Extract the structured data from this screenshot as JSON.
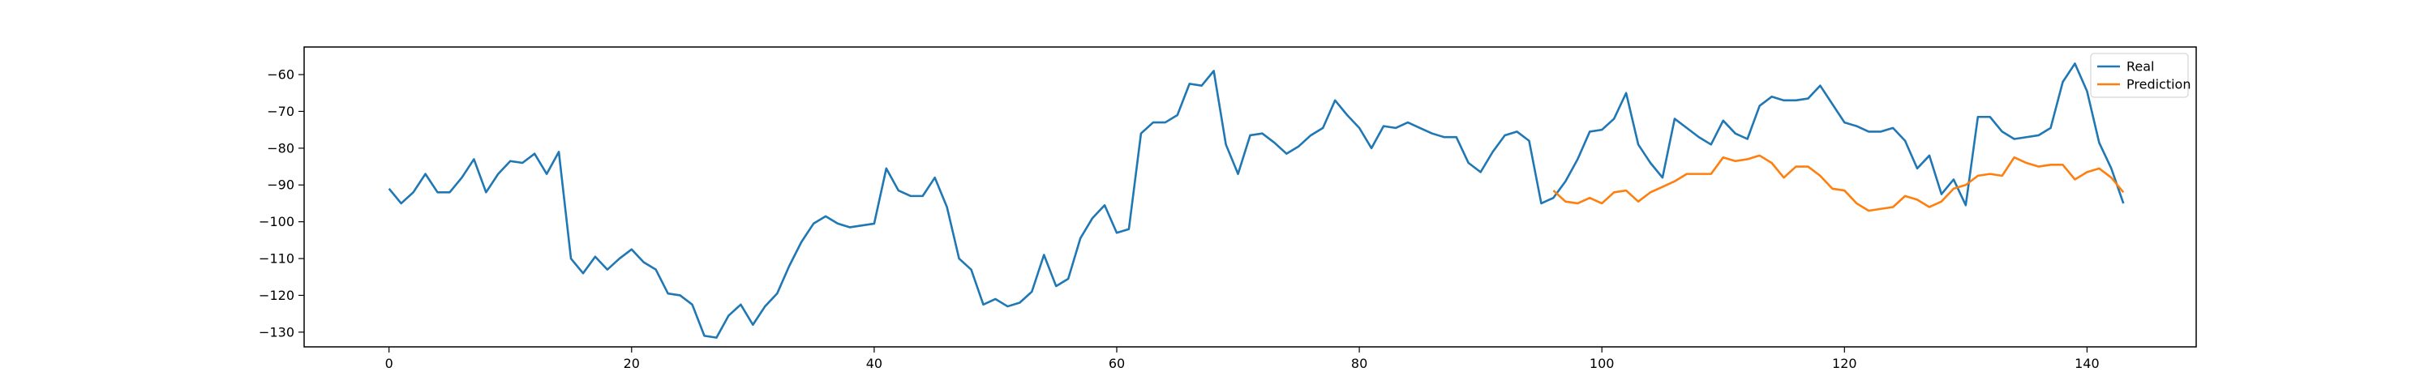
{
  "chart_data": {
    "type": "line",
    "title": "",
    "xlabel": "",
    "ylabel": "",
    "xlim": [
      -7,
      149
    ],
    "ylim": [
      -134,
      -52.5
    ],
    "xticks": [
      0,
      20,
      40,
      60,
      80,
      100,
      120,
      140
    ],
    "yticks": [
      -60,
      -70,
      -80,
      -90,
      -100,
      -110,
      -120,
      -130
    ],
    "grid": false,
    "legend": {
      "position": "top-right",
      "entries": [
        "Real",
        "Prediction"
      ]
    },
    "series": [
      {
        "name": "Real",
        "color": "#1f77b4",
        "x": [
          0,
          1,
          2,
          3,
          4,
          5,
          6,
          7,
          8,
          9,
          10,
          11,
          12,
          13,
          14,
          15,
          16,
          17,
          18,
          19,
          20,
          21,
          22,
          23,
          24,
          25,
          26,
          27,
          28,
          29,
          30,
          31,
          32,
          33,
          34,
          35,
          36,
          37,
          38,
          39,
          40,
          41,
          42,
          43,
          44,
          45,
          46,
          47,
          48,
          49,
          50,
          51,
          52,
          53,
          54,
          55,
          56,
          57,
          58,
          59,
          60,
          61,
          62,
          63,
          64,
          65,
          66,
          67,
          68,
          69,
          70,
          71,
          72,
          73,
          74,
          75,
          76,
          77,
          78,
          79,
          80,
          81,
          82,
          83,
          84,
          85,
          86,
          87,
          88,
          89,
          90,
          91,
          92,
          93,
          94,
          95,
          96,
          97,
          98,
          99,
          100,
          101,
          102,
          103,
          104,
          105,
          106,
          107,
          108,
          109,
          110,
          111,
          112,
          113,
          114,
          115,
          116,
          117,
          118,
          119,
          120,
          121,
          122,
          123,
          124,
          125,
          126,
          127,
          128,
          129,
          130,
          131,
          132,
          133,
          134,
          135,
          136,
          137,
          138,
          139,
          140,
          141,
          142,
          143
        ],
        "values": [
          -91,
          -95,
          -92,
          -87,
          -92,
          -92,
          -88,
          -83,
          -92,
          -87,
          -83.5,
          -84,
          -81.5,
          -87,
          -81,
          -110,
          -114,
          -109.5,
          -113,
          -110,
          -107.5,
          -111,
          -113,
          -119.5,
          -120,
          -122.5,
          -131,
          -131.5,
          -125.5,
          -122.5,
          -128,
          -123,
          -119.5,
          -112,
          -105.5,
          -100.5,
          -98.5,
          -100.5,
          -101.5,
          -101,
          -100.5,
          -85.5,
          -91.5,
          -93,
          -93,
          -88,
          -96,
          -110,
          -113,
          -122.5,
          -121,
          -123,
          -122,
          -119,
          -109,
          -117.5,
          -115.5,
          -104.5,
          -99,
          -95.5,
          -103,
          -102,
          -76,
          -73,
          -73,
          -71,
          -62.5,
          -63,
          -59,
          -79,
          -87,
          -76.5,
          -76,
          -78.5,
          -81.5,
          -79.5,
          -76.5,
          -74.5,
          -67,
          -71,
          -74.5,
          -80,
          -74,
          -74.5,
          -73,
          -74.5,
          -76,
          -77,
          -77,
          -84,
          -86.5,
          -81,
          -76.5,
          -75.5,
          -78,
          -95,
          -93.5,
          -89,
          -83,
          -75.5,
          -75,
          -72,
          -65,
          -79,
          -84,
          -88,
          -72,
          -74.5,
          -77,
          -79,
          -72.5,
          -76,
          -77.5,
          -68.5,
          -66,
          -67,
          -67,
          -66.5,
          -63,
          -68,
          -73,
          -74,
          -75.5,
          -75.5,
          -74.5,
          -78,
          -85.5,
          -82,
          -92.5,
          -88.5,
          -95.5,
          -71.5,
          -71.5,
          -75.5,
          -77.5,
          -77,
          -76.5,
          -74.5,
          -62,
          -57,
          -64.5,
          -78.5,
          -85.5,
          -95
        ]
      },
      {
        "name": "Prediction",
        "color": "#ff7f0e",
        "x": [
          96,
          97,
          98,
          99,
          100,
          101,
          102,
          103,
          104,
          105,
          106,
          107,
          108,
          109,
          110,
          111,
          112,
          113,
          114,
          115,
          116,
          117,
          118,
          119,
          120,
          121,
          122,
          123,
          124,
          125,
          126,
          127,
          128,
          129,
          130,
          131,
          132,
          133,
          134,
          135,
          136,
          137,
          138,
          139,
          140,
          141,
          142,
          143
        ],
        "values": [
          -91.5,
          -94.5,
          -95,
          -93.5,
          -95,
          -92,
          -91.5,
          -94.5,
          -92,
          -90.5,
          -89,
          -87,
          -87,
          -87,
          -82.5,
          -83.5,
          -83,
          -82,
          -84,
          -88,
          -85,
          -85,
          -87.5,
          -91,
          -91.5,
          -95,
          -97,
          -96.5,
          -96,
          -93,
          -94,
          -96,
          -94.5,
          -91,
          -90,
          -87.5,
          -87,
          -87.5,
          -82.5,
          -84,
          -85,
          -84.5,
          -84.5,
          -88.5,
          -86.5,
          -85.5,
          -88,
          -92
        ]
      }
    ]
  }
}
